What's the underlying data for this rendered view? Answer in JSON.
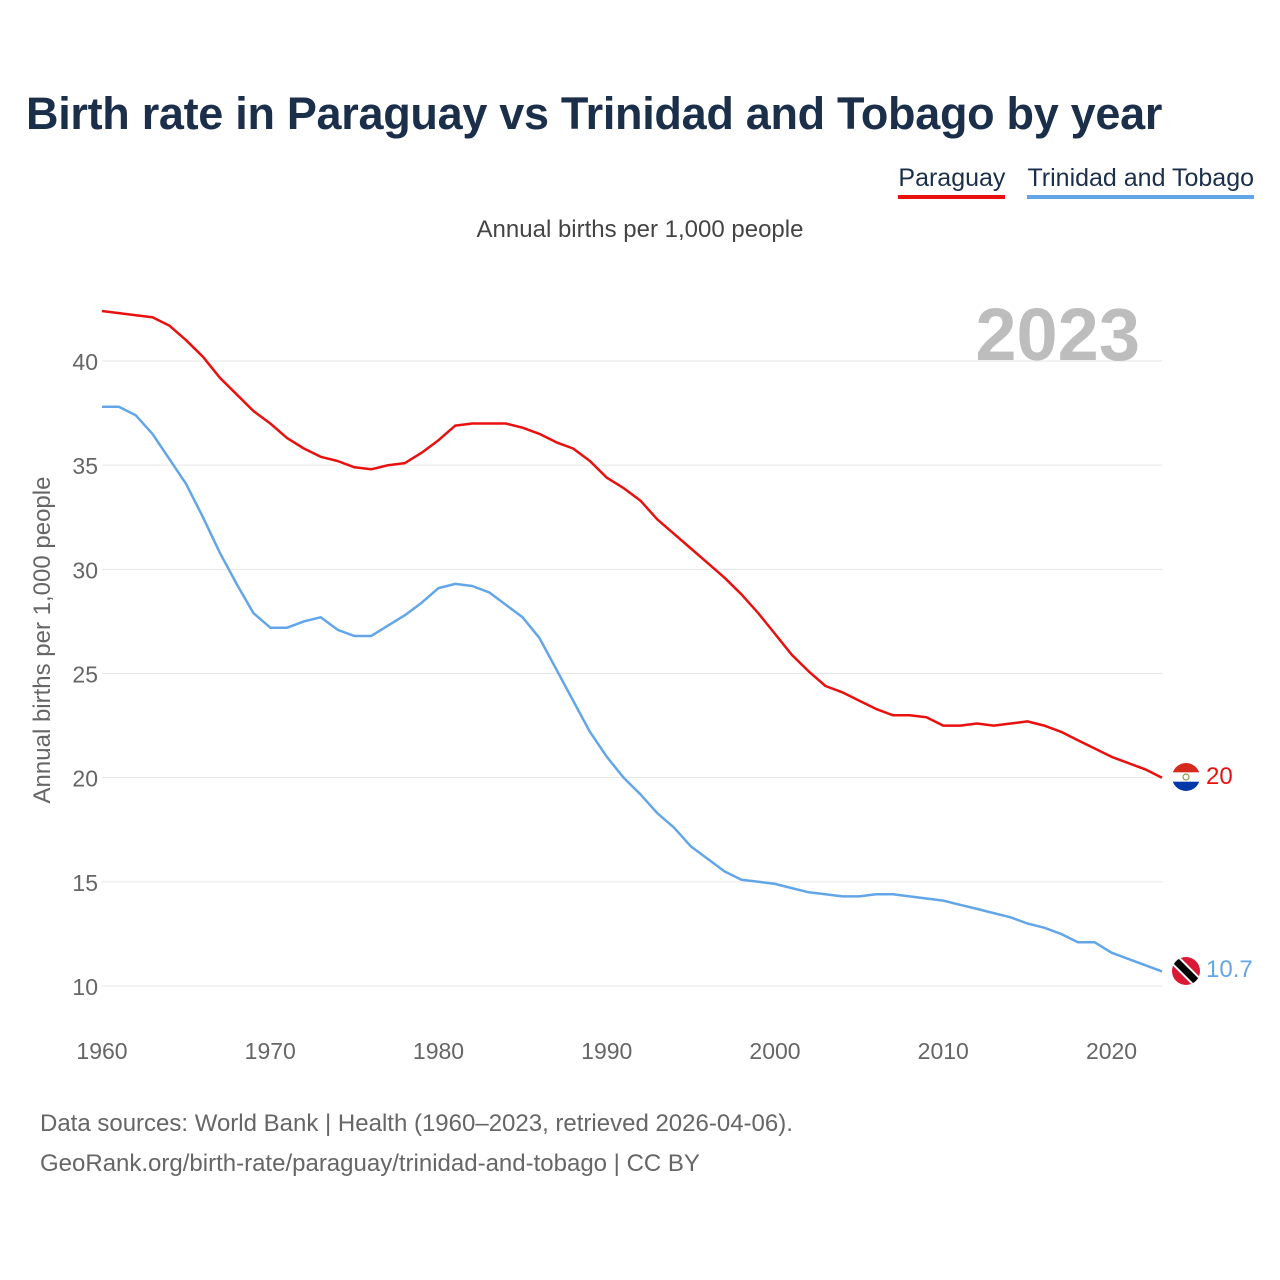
{
  "title": "Birth rate in Paraguay vs Trinidad and Tobago by year",
  "subtitle": "Annual births per 1,000 people",
  "legend": [
    {
      "name": "Paraguay",
      "color": "#e8110f"
    },
    {
      "name": "Trinidad and Tobago",
      "color": "#63a6e8"
    }
  ],
  "year_watermark": "2023",
  "footer": {
    "line1": "Data sources: World Bank | Health (1960–2023, retrieved 2026-04-06).",
    "line2": "GeoRank.org/birth-rate/paraguay/trinidad-and-tobago | CC BY"
  },
  "end_labels": {
    "paraguay": "20",
    "trinidad": "10.7"
  },
  "chart_data": {
    "type": "line",
    "title": "Birth rate in Paraguay vs Trinidad and Tobago by year",
    "xlabel": "",
    "ylabel": "Annual births per 1,000 people",
    "xlim": [
      1960,
      2023
    ],
    "ylim": [
      10,
      42.5
    ],
    "x_ticks": [
      1960,
      1970,
      1980,
      1990,
      2000,
      2010,
      2020
    ],
    "y_ticks": [
      10,
      15,
      20,
      25,
      30,
      35,
      40
    ],
    "grid": true,
    "legend_position": "top-right",
    "x_start": 1960,
    "series": [
      {
        "name": "Paraguay",
        "color": "#e8110f",
        "values": [
          42.4,
          42.3,
          42.2,
          42.1,
          41.7,
          41.0,
          40.2,
          39.2,
          38.4,
          37.6,
          37.0,
          36.3,
          35.8,
          35.4,
          35.2,
          34.9,
          34.8,
          35.0,
          35.1,
          35.6,
          36.2,
          36.9,
          37.0,
          37.0,
          37.0,
          36.8,
          36.5,
          36.1,
          35.8,
          35.2,
          34.4,
          33.9,
          33.3,
          32.4,
          31.7,
          31.0,
          30.3,
          29.6,
          28.8,
          27.9,
          26.9,
          25.9,
          25.1,
          24.4,
          24.1,
          23.7,
          23.3,
          23.0,
          23.0,
          22.9,
          22.5,
          22.5,
          22.6,
          22.5,
          22.6,
          22.7,
          22.5,
          22.2,
          21.8,
          21.4,
          21.0,
          20.7,
          20.4,
          20.0
        ]
      },
      {
        "name": "Trinidad and Tobago",
        "color": "#63a6e8",
        "values": [
          37.8,
          37.8,
          37.4,
          36.5,
          35.3,
          34.1,
          32.5,
          30.8,
          29.3,
          27.9,
          27.2,
          27.2,
          27.5,
          27.7,
          27.1,
          26.8,
          26.8,
          27.3,
          27.8,
          28.4,
          29.1,
          29.3,
          29.2,
          28.9,
          28.3,
          27.7,
          26.7,
          25.2,
          23.7,
          22.2,
          21.0,
          20.0,
          19.2,
          18.3,
          17.6,
          16.7,
          16.1,
          15.5,
          15.1,
          15.0,
          14.9,
          14.7,
          14.5,
          14.4,
          14.3,
          14.3,
          14.4,
          14.4,
          14.3,
          14.2,
          14.1,
          13.9,
          13.7,
          13.5,
          13.3,
          13.0,
          12.8,
          12.5,
          12.1,
          12.1,
          11.6,
          11.3,
          11.0,
          10.7
        ]
      }
    ]
  }
}
